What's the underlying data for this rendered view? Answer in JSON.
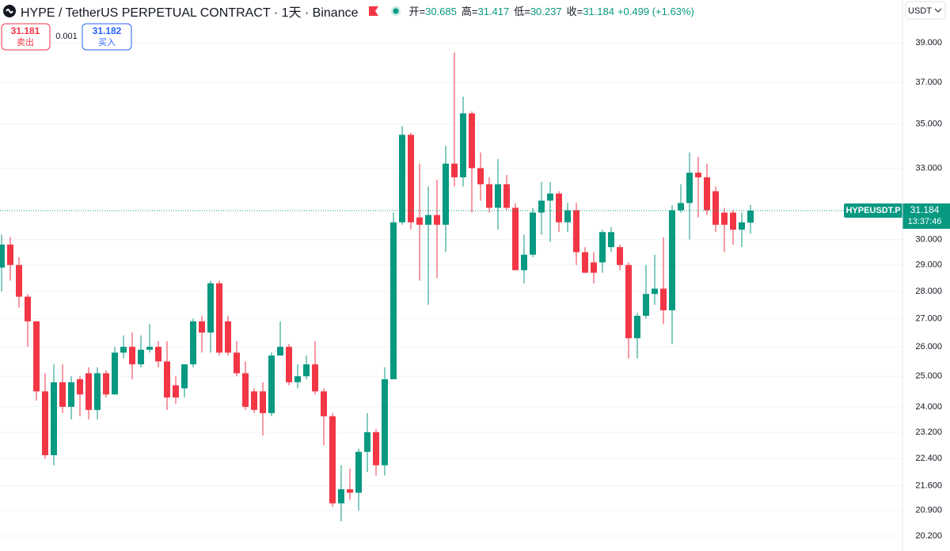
{
  "header": {
    "symbol": "HYPE / TetherUS PERPETUAL CONTRACT · 1天 · Binance",
    "ohlc_labels": [
      "开=",
      "高=",
      "低=",
      "收="
    ],
    "change": "+0.499 (+1.63%)",
    "sell_price": "31.181",
    "sell_label": "卖出",
    "spread": "0.001",
    "buy_price": "31.182",
    "buy_label": "买入",
    "currency": "USDT"
  },
  "chart_data": {
    "type": "candlestick",
    "ylog": true,
    "grid": true,
    "up_color": "#089981",
    "down_color": "#f23645",
    "ylim": [
      19.8,
      41.3
    ],
    "yticks": [
      {
        "value": 39,
        "label": "39.000"
      },
      {
        "value": 37,
        "label": "37.000"
      },
      {
        "value": 35,
        "label": "35.000"
      },
      {
        "value": 33,
        "label": "33.000"
      },
      {
        "value": 30,
        "label": "30.000"
      },
      {
        "value": 29,
        "label": "29.000"
      },
      {
        "value": 28,
        "label": "28.000"
      },
      {
        "value": 27,
        "label": "27.000"
      },
      {
        "value": 26,
        "label": "26.000"
      },
      {
        "value": 25,
        "label": "25.000"
      },
      {
        "value": 24,
        "label": "24.000"
      },
      {
        "value": 23.2,
        "label": "23.200"
      },
      {
        "value": 22.4,
        "label": "22.400"
      },
      {
        "value": 21.6,
        "label": "21.600"
      },
      {
        "value": 20.9,
        "label": "20.900"
      },
      {
        "value": 20.2,
        "label": "20.200"
      }
    ],
    "price_tag": "HYPEUSDT.P",
    "countdown": "13:37:46",
    "open": [
      28.9,
      29.8,
      29.0,
      27.8,
      26.9,
      24.5,
      22.5,
      24.8,
      24.0,
      24.9,
      25.1,
      23.9,
      25.1,
      24.4,
      25.8,
      26.0,
      25.4,
      25.9,
      26.0,
      25.5,
      24.7,
      24.6,
      25.4,
      26.9,
      26.5,
      28.3,
      26.9,
      25.8,
      25.1,
      24.5,
      24.5,
      23.8,
      25.7,
      26.0,
      24.8,
      25.0,
      25.4,
      24.5,
      23.7,
      21.1,
      21.5,
      21.4,
      22.6,
      23.2,
      22.2,
      24.9,
      30.7,
      34.5,
      30.9,
      30.6,
      31.0,
      30.6,
      33.2,
      32.6,
      35.5,
      33.0,
      32.3,
      31.3,
      32.3,
      31.3,
      28.8,
      29.4,
      31.1,
      31.6,
      31.9,
      30.7,
      31.2,
      29.5,
      29.1,
      29.1,
      29.7,
      29.7,
      29.0,
      26.3,
      27.1,
      27.9,
      28.1,
      27.3,
      31.2,
      31.5,
      32.8,
      32.6,
      32.0,
      31.1,
      31.1,
      30.4,
      30.685
    ],
    "high": [
      30.2,
      30.1,
      29.3,
      27.9,
      26.9,
      25.1,
      25.4,
      25.4,
      25.0,
      25.0,
      25.3,
      25.3,
      25.2,
      26.0,
      26.4,
      26.5,
      26.4,
      26.8,
      26.2,
      26.2,
      25.0,
      25.4,
      27.0,
      27.1,
      28.4,
      28.4,
      27.1,
      26.2,
      25.5,
      24.6,
      24.8,
      25.8,
      26.9,
      26.1,
      25.4,
      25.7,
      26.2,
      24.6,
      23.8,
      22.2,
      22.1,
      22.7,
      23.8,
      23.3,
      25.3,
      31.1,
      34.9,
      34.6,
      33.2,
      32.2,
      32.5,
      34.0,
      38.5,
      36.3,
      35.6,
      33.7,
      32.6,
      33.4,
      32.7,
      31.5,
      30.2,
      31.3,
      32.4,
      32.4,
      32.0,
      31.5,
      31.5,
      29.7,
      29.5,
      30.4,
      30.5,
      29.8,
      29.1,
      27.2,
      29.0,
      29.4,
      30.1,
      31.4,
      32.3,
      33.7,
      33.5,
      33.2,
      32.2,
      31.3,
      31.2,
      31.1,
      31.417
    ],
    "low": [
      28.0,
      28.4,
      27.4,
      26.0,
      24.2,
      22.4,
      22.2,
      23.8,
      23.6,
      23.7,
      23.6,
      23.6,
      24.3,
      24.4,
      25.6,
      24.9,
      25.3,
      25.8,
      25.3,
      23.9,
      24.1,
      24.3,
      25.3,
      25.8,
      25.8,
      25.7,
      25.7,
      25.0,
      23.9,
      23.8,
      23.1,
      23.7,
      25.7,
      24.7,
      24.6,
      24.9,
      24.4,
      22.8,
      21.0,
      20.6,
      21.2,
      20.9,
      22.0,
      21.9,
      21.9,
      24.9,
      30.6,
      30.4,
      28.4,
      27.5,
      28.5,
      29.5,
      32.2,
      32.2,
      31.1,
      31.6,
      31.1,
      30.4,
      31.2,
      28.8,
      28.3,
      29.3,
      30.2,
      29.9,
      30.3,
      30.3,
      29.0,
      28.7,
      28.3,
      28.7,
      29.5,
      28.8,
      25.6,
      25.6,
      27.0,
      27.5,
      26.8,
      26.1,
      31.1,
      30.0,
      30.9,
      31.0,
      30.3,
      29.5,
      29.8,
      29.7,
      30.237
    ],
    "close": [
      29.8,
      29.0,
      27.8,
      26.9,
      24.5,
      22.5,
      24.8,
      24.0,
      24.8,
      24.4,
      23.9,
      25.1,
      24.4,
      25.8,
      26.0,
      25.4,
      25.9,
      26.0,
      25.5,
      24.3,
      24.3,
      25.4,
      26.9,
      26.5,
      28.3,
      25.8,
      25.8,
      25.1,
      24.0,
      23.9,
      23.8,
      25.7,
      26.0,
      24.8,
      25.0,
      25.4,
      24.5,
      23.7,
      21.1,
      21.5,
      21.4,
      22.6,
      23.2,
      22.2,
      24.9,
      30.7,
      34.5,
      30.7,
      30.6,
      31.0,
      30.6,
      33.2,
      32.6,
      35.5,
      33.0,
      32.3,
      31.3,
      32.3,
      31.3,
      28.8,
      29.4,
      31.1,
      31.6,
      31.9,
      30.7,
      31.2,
      29.5,
      28.7,
      28.7,
      30.3,
      30.3,
      29.0,
      26.3,
      27.1,
      27.9,
      28.1,
      27.3,
      31.2,
      31.5,
      32.8,
      32.6,
      31.2,
      30.6,
      30.6,
      30.4,
      30.7,
      31.184
    ]
  }
}
